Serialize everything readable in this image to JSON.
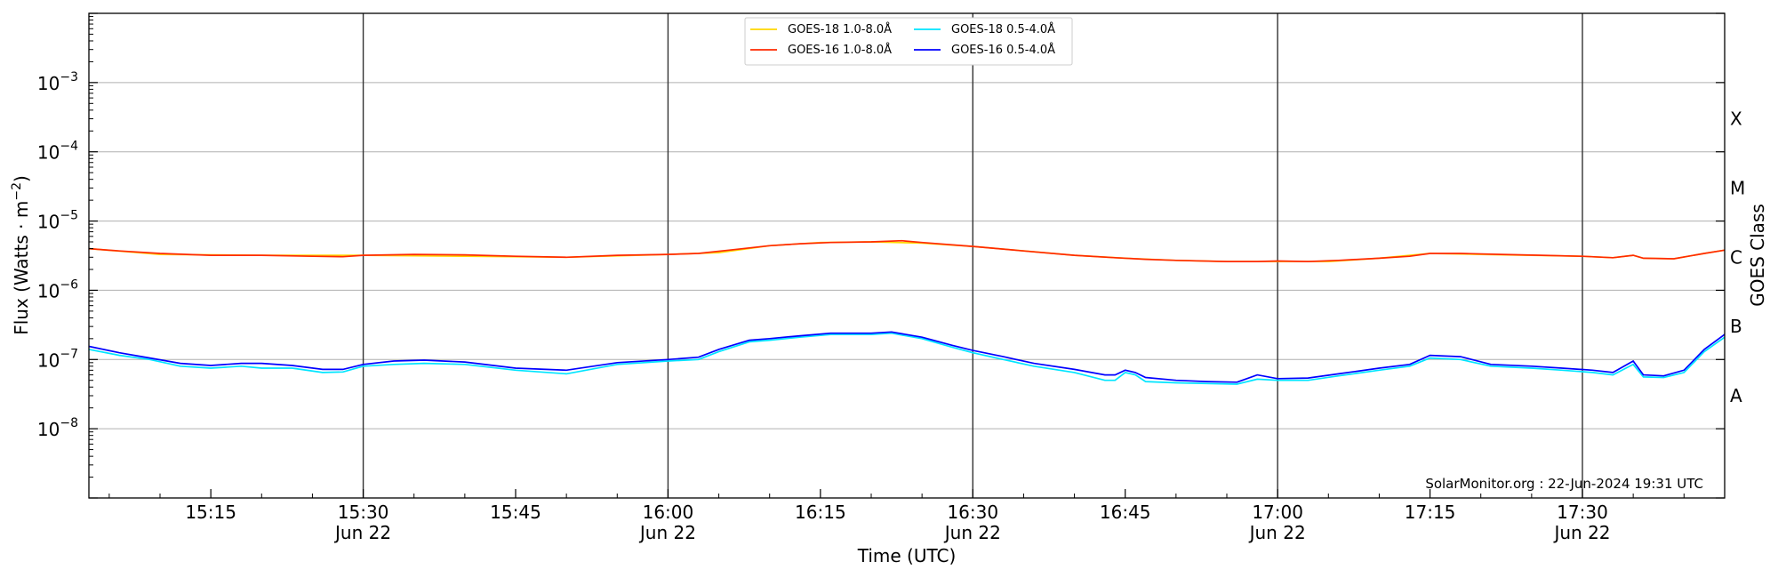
{
  "chart_data": {
    "type": "line",
    "title": "",
    "xlabel": "Time (UTC)",
    "ylabel_main": "Flux (Watts · m",
    "ylabel_sup": "−2",
    "ylabel_close": ")",
    "ylabel_right": "GOES Class",
    "y_scale": "log",
    "ylim": [
      1e-09,
      0.01
    ],
    "xlim": [
      "15:03",
      "17:44"
    ],
    "grid": "horizontal at decades, vertical lines every 30 min",
    "legend_position": "top-center",
    "y_ticks": [
      {
        "value": 1e-08,
        "label_base": "10",
        "label_exp": "−8"
      },
      {
        "value": 1e-07,
        "label_base": "10",
        "label_exp": "−7"
      },
      {
        "value": 1e-06,
        "label_base": "10",
        "label_exp": "−6"
      },
      {
        "value": 1e-05,
        "label_base": "10",
        "label_exp": "−5"
      },
      {
        "value": 0.0001,
        "label_base": "10",
        "label_exp": "−4"
      },
      {
        "value": 0.001,
        "label_base": "10",
        "label_exp": "−3"
      }
    ],
    "x_ticks": [
      {
        "time": "15:15",
        "label": "15:15",
        "sublabel": ""
      },
      {
        "time": "15:30",
        "label": "15:30",
        "sublabel": "Jun 22"
      },
      {
        "time": "15:45",
        "label": "15:45",
        "sublabel": ""
      },
      {
        "time": "16:00",
        "label": "16:00",
        "sublabel": "Jun 22"
      },
      {
        "time": "16:15",
        "label": "16:15",
        "sublabel": ""
      },
      {
        "time": "16:30",
        "label": "16:30",
        "sublabel": "Jun 22"
      },
      {
        "time": "16:45",
        "label": "16:45",
        "sublabel": ""
      },
      {
        "time": "17:00",
        "label": "17:00",
        "sublabel": "Jun 22"
      },
      {
        "time": "17:15",
        "label": "17:15",
        "sublabel": ""
      },
      {
        "time": "17:30",
        "label": "17:30",
        "sublabel": "Jun 22"
      }
    ],
    "classes": [
      {
        "label": "A",
        "value": 3e-08
      },
      {
        "label": "B",
        "value": 3e-07
      },
      {
        "label": "C",
        "value": 3e-06
      },
      {
        "label": "M",
        "value": 3e-05
      },
      {
        "label": "X",
        "value": 0.0003
      }
    ],
    "credit": "SolarMonitor.org : 22-Jun-2024 19:31 UTC",
    "series": [
      {
        "name": "GOES-18 1.0-8.0Å",
        "color": "#ffd700",
        "points": [
          [
            "15:03",
            4e-06
          ],
          [
            "15:10",
            3.3e-06
          ],
          [
            "15:20",
            3.2e-06
          ],
          [
            "15:30",
            3.2e-06
          ],
          [
            "15:40",
            3.1e-06
          ],
          [
            "15:50",
            3e-06
          ],
          [
            "16:00",
            3.3e-06
          ],
          [
            "16:05",
            3.5e-06
          ],
          [
            "16:10",
            4.4e-06
          ],
          [
            "16:15",
            4.9e-06
          ],
          [
            "16:20",
            5e-06
          ],
          [
            "16:25",
            4.8e-06
          ],
          [
            "16:30",
            4.3e-06
          ],
          [
            "16:40",
            3.2e-06
          ],
          [
            "16:45",
            2.9e-06
          ],
          [
            "16:50",
            2.7e-06
          ],
          [
            "16:55",
            2.6e-06
          ],
          [
            "17:00",
            2.6e-06
          ],
          [
            "17:05",
            2.6e-06
          ],
          [
            "17:10",
            2.9e-06
          ],
          [
            "17:15",
            3.4e-06
          ],
          [
            "17:20",
            3.3e-06
          ],
          [
            "17:25",
            3.2e-06
          ],
          [
            "17:30",
            3.1e-06
          ],
          [
            "17:33",
            2.95e-06
          ],
          [
            "17:35",
            3.2e-06
          ],
          [
            "17:36",
            2.9e-06
          ],
          [
            "17:39",
            2.85e-06
          ],
          [
            "17:42",
            3.4e-06
          ],
          [
            "17:44",
            3.8e-06
          ]
        ]
      },
      {
        "name": "GOES-16 1.0-8.0Å",
        "color": "#ff2a00",
        "points": [
          [
            "15:03",
            4e-06
          ],
          [
            "15:06",
            3.7e-06
          ],
          [
            "15:10",
            3.4e-06
          ],
          [
            "15:15",
            3.2e-06
          ],
          [
            "15:20",
            3.2e-06
          ],
          [
            "15:25",
            3.1e-06
          ],
          [
            "15:28",
            3.05e-06
          ],
          [
            "15:30",
            3.2e-06
          ],
          [
            "15:35",
            3.3e-06
          ],
          [
            "15:40",
            3.25e-06
          ],
          [
            "15:45",
            3.1e-06
          ],
          [
            "15:50",
            3e-06
          ],
          [
            "15:55",
            3.2e-06
          ],
          [
            "16:00",
            3.3e-06
          ],
          [
            "16:03",
            3.4e-06
          ],
          [
            "16:06",
            3.8e-06
          ],
          [
            "16:10",
            4.4e-06
          ],
          [
            "16:13",
            4.7e-06
          ],
          [
            "16:16",
            4.9e-06
          ],
          [
            "16:20",
            5e-06
          ],
          [
            "16:23",
            5.2e-06
          ],
          [
            "16:25",
            4.9e-06
          ],
          [
            "16:30",
            4.3e-06
          ],
          [
            "16:35",
            3.7e-06
          ],
          [
            "16:40",
            3.2e-06
          ],
          [
            "16:44",
            2.95e-06
          ],
          [
            "16:47",
            2.8e-06
          ],
          [
            "16:50",
            2.7e-06
          ],
          [
            "16:55",
            2.6e-06
          ],
          [
            "16:58",
            2.6e-06
          ],
          [
            "17:00",
            2.65e-06
          ],
          [
            "17:03",
            2.6e-06
          ],
          [
            "17:06",
            2.7e-06
          ],
          [
            "17:10",
            2.9e-06
          ],
          [
            "17:13",
            3.1e-06
          ],
          [
            "17:15",
            3.4e-06
          ],
          [
            "17:18",
            3.4e-06
          ],
          [
            "17:22",
            3.3e-06
          ],
          [
            "17:26",
            3.2e-06
          ],
          [
            "17:30",
            3.1e-06
          ],
          [
            "17:33",
            2.95e-06
          ],
          [
            "17:35",
            3.2e-06
          ],
          [
            "17:36",
            2.9e-06
          ],
          [
            "17:39",
            2.85e-06
          ],
          [
            "17:42",
            3.4e-06
          ],
          [
            "17:44",
            3.8e-06
          ]
        ]
      },
      {
        "name": "GOES-18 0.5-4.0Å",
        "color": "#00e5ff",
        "points": [
          [
            "15:03",
            1.4e-07
          ],
          [
            "15:06",
            1.15e-07
          ],
          [
            "15:09",
            1e-07
          ],
          [
            "15:12",
            8e-08
          ],
          [
            "15:15",
            7.5e-08
          ],
          [
            "15:18",
            8e-08
          ],
          [
            "15:20",
            7.5e-08
          ],
          [
            "15:23",
            7.5e-08
          ],
          [
            "15:26",
            6.5e-08
          ],
          [
            "15:28",
            6.6e-08
          ],
          [
            "15:30",
            8e-08
          ],
          [
            "15:33",
            8.5e-08
          ],
          [
            "15:36",
            8.8e-08
          ],
          [
            "15:40",
            8.5e-08
          ],
          [
            "15:45",
            7e-08
          ],
          [
            "15:50",
            6.2e-08
          ],
          [
            "15:55",
            8.5e-08
          ],
          [
            "16:00",
            9.5e-08
          ],
          [
            "16:03",
            1e-07
          ],
          [
            "16:05",
            1.3e-07
          ],
          [
            "16:08",
            1.8e-07
          ],
          [
            "16:10",
            1.9e-07
          ],
          [
            "16:13",
            2.1e-07
          ],
          [
            "16:16",
            2.3e-07
          ],
          [
            "16:20",
            2.3e-07
          ],
          [
            "16:22",
            2.4e-07
          ],
          [
            "16:25",
            2e-07
          ],
          [
            "16:28",
            1.5e-07
          ],
          [
            "16:30",
            1.25e-07
          ],
          [
            "16:33",
            1e-07
          ],
          [
            "16:36",
            8e-08
          ],
          [
            "16:40",
            6.5e-08
          ],
          [
            "16:43",
            5e-08
          ],
          [
            "16:44",
            5e-08
          ],
          [
            "16:45",
            6.5e-08
          ],
          [
            "16:46",
            6e-08
          ],
          [
            "16:47",
            4.8e-08
          ],
          [
            "16:50",
            4.6e-08
          ],
          [
            "16:53",
            4.5e-08
          ],
          [
            "16:56",
            4.4e-08
          ],
          [
            "16:58",
            5.2e-08
          ],
          [
            "17:00",
            5e-08
          ],
          [
            "17:03",
            5e-08
          ],
          [
            "17:06",
            5.8e-08
          ],
          [
            "17:10",
            7e-08
          ],
          [
            "17:13",
            8e-08
          ],
          [
            "17:15",
            1.05e-07
          ],
          [
            "17:18",
            1e-07
          ],
          [
            "17:21",
            8e-08
          ],
          [
            "17:25",
            7.5e-08
          ],
          [
            "17:28",
            7e-08
          ],
          [
            "17:31",
            6.5e-08
          ],
          [
            "17:33",
            6e-08
          ],
          [
            "17:35",
            8.5e-08
          ],
          [
            "17:36",
            5.6e-08
          ],
          [
            "17:38",
            5.5e-08
          ],
          [
            "17:40",
            6.5e-08
          ],
          [
            "17:42",
            1.3e-07
          ],
          [
            "17:44",
            2.1e-07
          ]
        ]
      },
      {
        "name": "GOES-16 0.5-4.0Å",
        "color": "#0000ff",
        "points": [
          [
            "15:03",
            1.55e-07
          ],
          [
            "15:06",
            1.25e-07
          ],
          [
            "15:09",
            1.05e-07
          ],
          [
            "15:12",
            8.8e-08
          ],
          [
            "15:15",
            8.2e-08
          ],
          [
            "15:18",
            8.8e-08
          ],
          [
            "15:20",
            8.8e-08
          ],
          [
            "15:23",
            8.2e-08
          ],
          [
            "15:26",
            7.2e-08
          ],
          [
            "15:28",
            7.2e-08
          ],
          [
            "15:30",
            8.5e-08
          ],
          [
            "15:33",
            9.5e-08
          ],
          [
            "15:36",
            9.8e-08
          ],
          [
            "15:40",
            9.2e-08
          ],
          [
            "15:45",
            7.5e-08
          ],
          [
            "15:50",
            7e-08
          ],
          [
            "15:55",
            9e-08
          ],
          [
            "16:00",
            1e-07
          ],
          [
            "16:03",
            1.08e-07
          ],
          [
            "16:05",
            1.4e-07
          ],
          [
            "16:08",
            1.9e-07
          ],
          [
            "16:10",
            2e-07
          ],
          [
            "16:13",
            2.2e-07
          ],
          [
            "16:16",
            2.4e-07
          ],
          [
            "16:20",
            2.4e-07
          ],
          [
            "16:22",
            2.5e-07
          ],
          [
            "16:25",
            2.1e-07
          ],
          [
            "16:28",
            1.6e-07
          ],
          [
            "16:30",
            1.35e-07
          ],
          [
            "16:33",
            1.1e-07
          ],
          [
            "16:36",
            8.8e-08
          ],
          [
            "16:40",
            7.2e-08
          ],
          [
            "16:43",
            6e-08
          ],
          [
            "16:44",
            6e-08
          ],
          [
            "16:45",
            7e-08
          ],
          [
            "16:46",
            6.5e-08
          ],
          [
            "16:47",
            5.5e-08
          ],
          [
            "16:50",
            5e-08
          ],
          [
            "16:53",
            4.8e-08
          ],
          [
            "16:56",
            4.7e-08
          ],
          [
            "16:58",
            6e-08
          ],
          [
            "17:00",
            5.3e-08
          ],
          [
            "17:03",
            5.4e-08
          ],
          [
            "17:06",
            6.2e-08
          ],
          [
            "17:10",
            7.5e-08
          ],
          [
            "17:13",
            8.5e-08
          ],
          [
            "17:15",
            1.15e-07
          ],
          [
            "17:18",
            1.1e-07
          ],
          [
            "17:21",
            8.5e-08
          ],
          [
            "17:25",
            8e-08
          ],
          [
            "17:28",
            7.5e-08
          ],
          [
            "17:31",
            7e-08
          ],
          [
            "17:33",
            6.5e-08
          ],
          [
            "17:35",
            9.5e-08
          ],
          [
            "17:36",
            6e-08
          ],
          [
            "17:38",
            5.8e-08
          ],
          [
            "17:40",
            7e-08
          ],
          [
            "17:42",
            1.4e-07
          ],
          [
            "17:44",
            2.3e-07
          ]
        ]
      }
    ]
  }
}
